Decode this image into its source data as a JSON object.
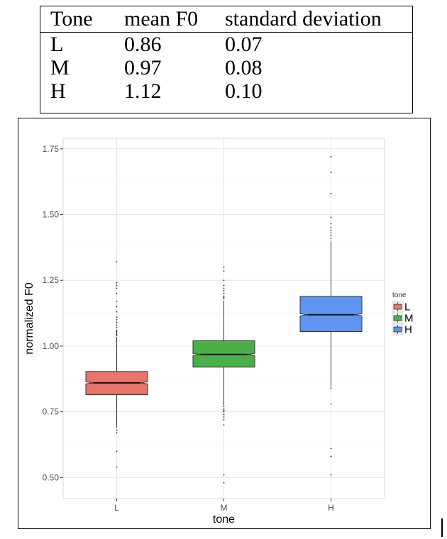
{
  "table": {
    "headers": [
      "Tone",
      "mean F0",
      "standard deviation"
    ],
    "rows": [
      [
        "L",
        "0.86",
        "0.07"
      ],
      [
        "M",
        "0.97",
        "0.08"
      ],
      [
        "H",
        "1.12",
        "0.10"
      ]
    ]
  },
  "chart_data": {
    "type": "boxplot",
    "notched": true,
    "xlabel": "tone",
    "ylabel": "normalized F0",
    "categories": [
      "L",
      "M",
      "H"
    ],
    "ylim": [
      0.42,
      1.79
    ],
    "yticks": [
      0.5,
      0.75,
      1.0,
      1.25,
      1.5,
      1.75
    ],
    "ytick_labels": [
      "0.50",
      "0.75",
      "1.00",
      "1.25",
      "1.50",
      "1.75"
    ],
    "grid": true,
    "legend": {
      "title": "tone",
      "position": "right",
      "entries": [
        "L",
        "M",
        "H"
      ]
    },
    "colors": {
      "L": "#E8746B",
      "M": "#4BAF48",
      "H": "#5E95F0"
    },
    "boxes": [
      {
        "category": "L",
        "q1": 0.815,
        "median": 0.86,
        "q3": 0.903,
        "notch": 0.004,
        "whisker_low": 0.69,
        "whisker_high": 1.035,
        "outliers": [
          1.32,
          1.24,
          1.23,
          1.22,
          1.2,
          1.17,
          1.15,
          1.13,
          1.11,
          1.1,
          1.09,
          1.08,
          1.07,
          1.06,
          1.055,
          1.05,
          1.045,
          1.04,
          0.68,
          0.67,
          0.6,
          0.54
        ]
      },
      {
        "category": "M",
        "q1": 0.92,
        "median": 0.968,
        "q3": 1.02,
        "notch": 0.004,
        "whisker_low": 0.775,
        "whisker_high": 1.172,
        "outliers": [
          1.3,
          1.285,
          1.25,
          1.23,
          1.22,
          1.21,
          1.2,
          1.19,
          1.185,
          1.18,
          0.77,
          0.76,
          0.755,
          0.75,
          0.74,
          0.73,
          0.72,
          0.7,
          0.51,
          0.48
        ]
      },
      {
        "category": "H",
        "q1": 1.055,
        "median": 1.119,
        "q3": 1.189,
        "notch": 0.004,
        "whisker_low": 0.845,
        "whisker_high": 1.4,
        "outliers": [
          1.72,
          1.66,
          1.58,
          1.49,
          1.465,
          1.45,
          1.44,
          1.43,
          1.42,
          1.41,
          0.84,
          0.78,
          0.61,
          0.58,
          0.51
        ]
      }
    ]
  }
}
